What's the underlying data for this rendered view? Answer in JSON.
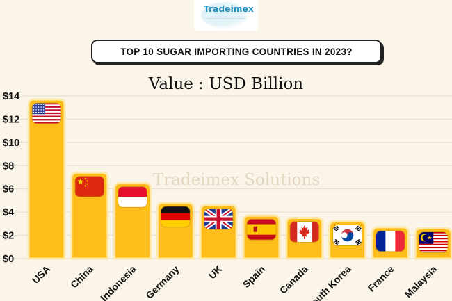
{
  "logo": {
    "text": "Tradeimex"
  },
  "header": {
    "title": "TOP 10 SUGAR IMPORTING COUNTRIES IN 2023?"
  },
  "watermark": "Tradeimex Solutions",
  "chart_data": {
    "type": "bar",
    "subtitle": "Value : USD Billion",
    "categories": [
      "USA",
      "China",
      "Indonesia",
      "Germany",
      "UK",
      "Spain",
      "Canada",
      "South Korea",
      "France",
      "Malaysia"
    ],
    "values": [
      13.7,
      7.4,
      6.5,
      4.8,
      4.6,
      3.7,
      3.5,
      3.2,
      2.7,
      2.6
    ],
    "flags": [
      "usa-flag",
      "china-flag",
      "indonesia-flag",
      "germany-flag",
      "uk-flag",
      "spain-flag",
      "canada-flag",
      "south-korea-flag",
      "france-flag",
      "malaysia-flag"
    ],
    "ylim": [
      0,
      14
    ],
    "yticks": [
      "$0",
      "$2",
      "$4",
      "$6",
      "$8",
      "$10",
      "$12",
      "$14"
    ],
    "grid": true,
    "bar_color": "#ffbd1b",
    "bar_border_color": "#ffe9a8"
  }
}
